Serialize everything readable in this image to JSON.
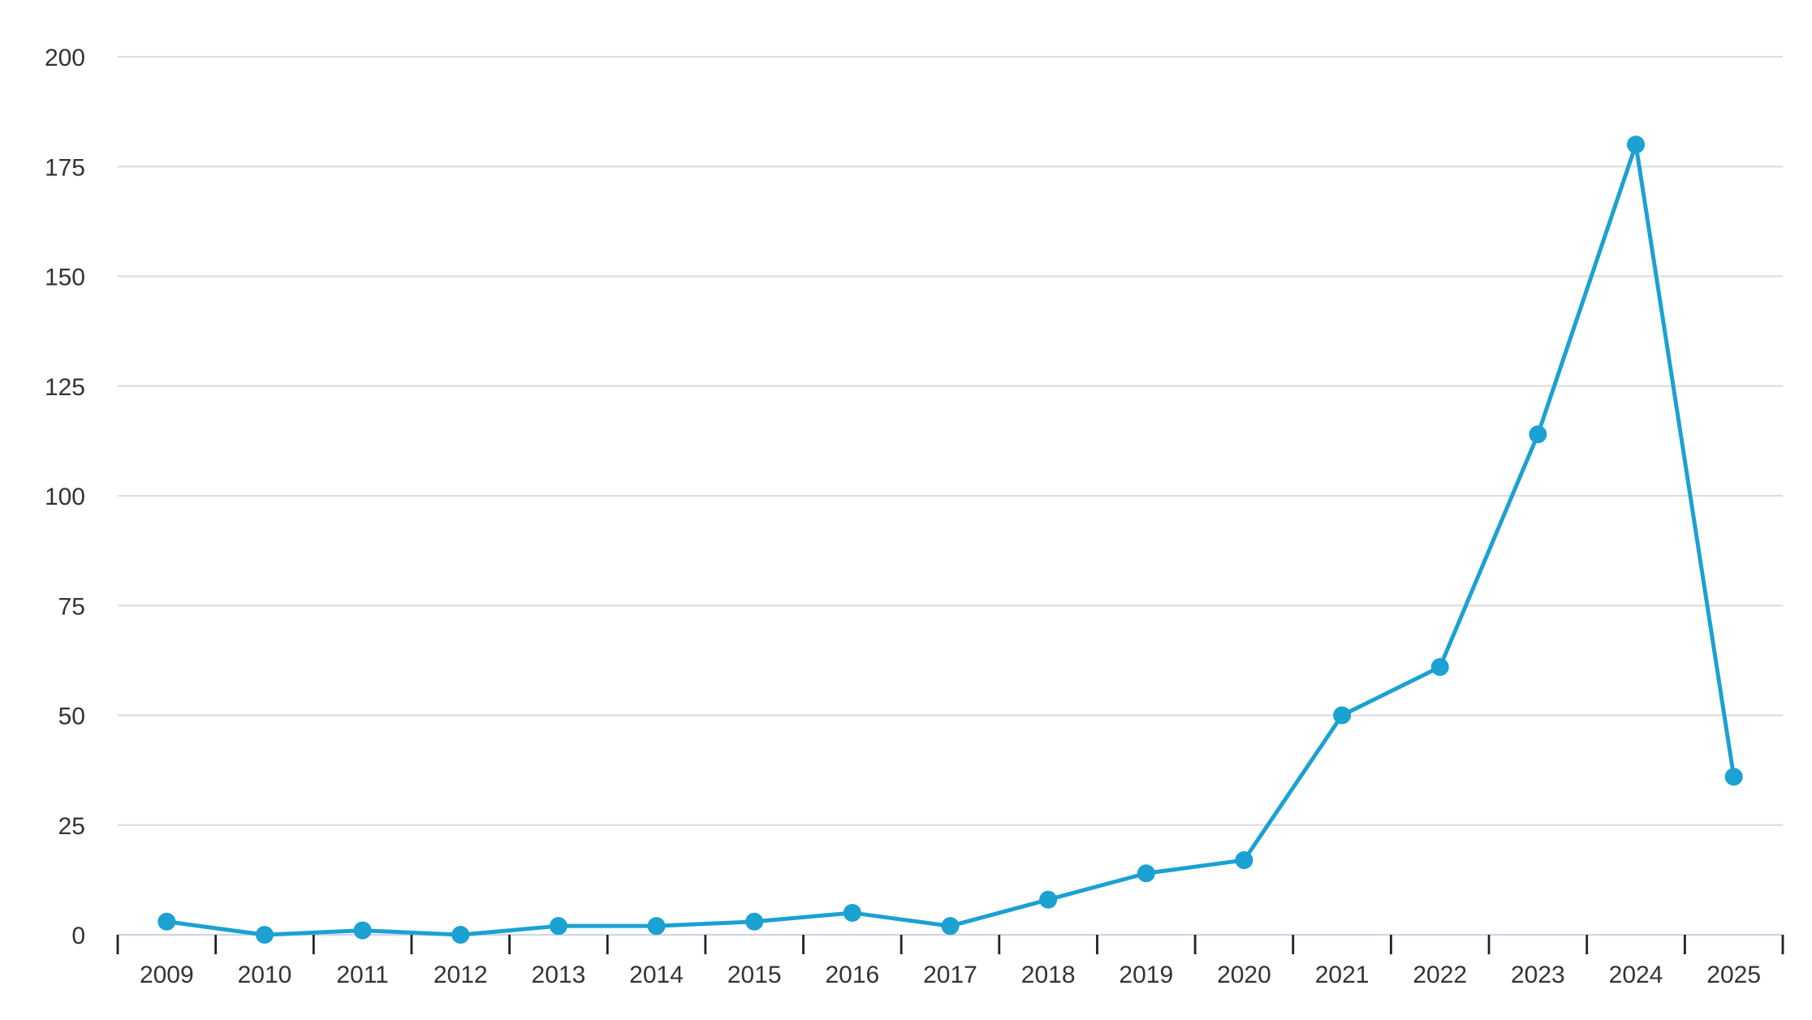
{
  "chart_data": {
    "type": "line",
    "title": "",
    "xlabel": "",
    "ylabel": "",
    "x": [
      "2009",
      "2010",
      "2011",
      "2012",
      "2013",
      "2014",
      "2015",
      "2016",
      "2017",
      "2018",
      "2019",
      "2020",
      "2021",
      "2022",
      "2023",
      "2024",
      "2025"
    ],
    "series": [
      {
        "values": [
          3,
          0,
          1,
          0,
          2,
          2,
          3,
          5,
          2,
          8,
          14,
          17,
          50,
          61,
          114,
          180,
          36
        ]
      }
    ],
    "ylim": [
      0,
      200
    ],
    "yticks": [
      0,
      25,
      50,
      75,
      100,
      125,
      150,
      175,
      200
    ],
    "grid": true,
    "legend": "none",
    "colors": {
      "series": "#1ba1d2"
    }
  }
}
